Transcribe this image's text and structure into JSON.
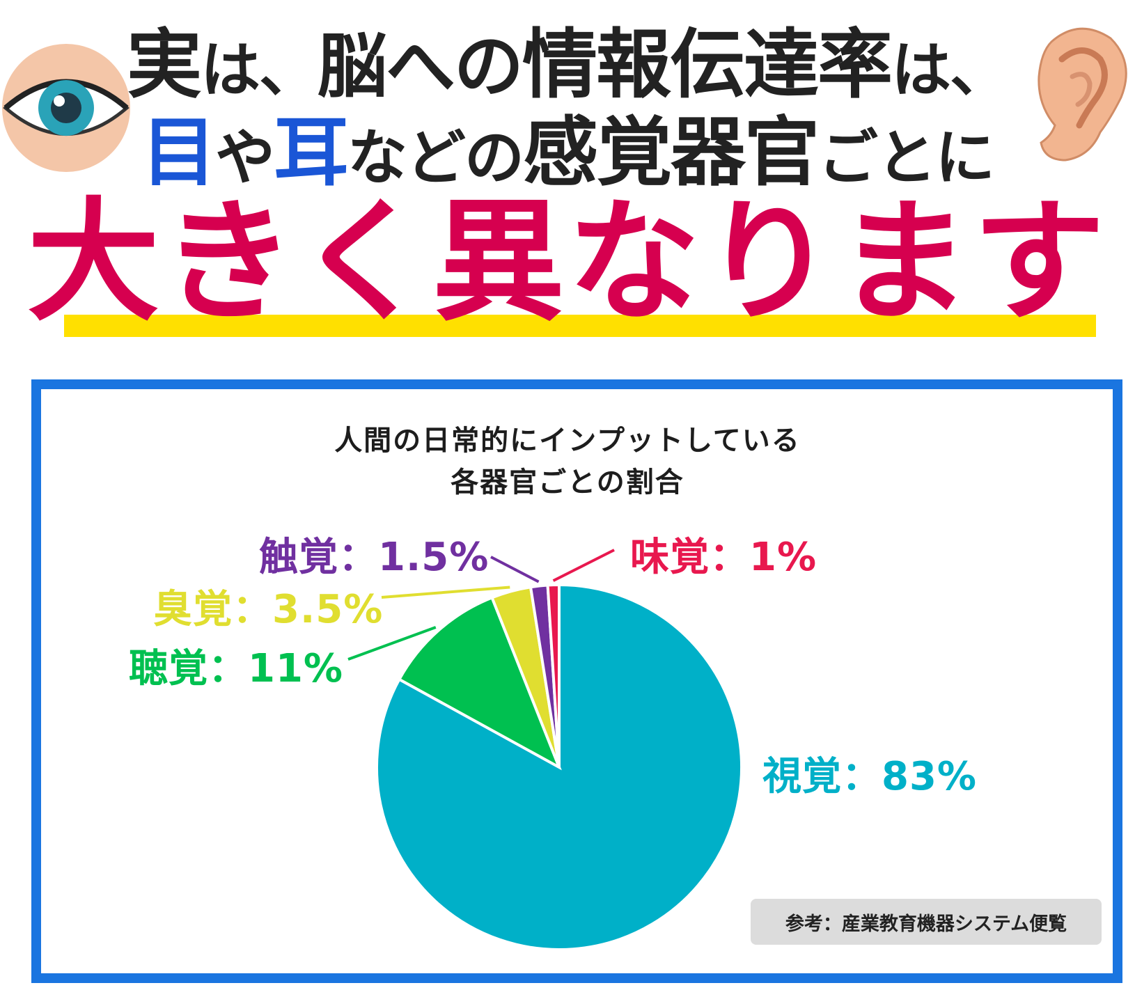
{
  "headline": {
    "line1": {
      "p1": "実",
      "p2": "は、",
      "p3": "脳への",
      "p4": "情報伝達率",
      "p5": "は、"
    },
    "line2": {
      "p1": "目",
      "p2": "や",
      "p3": "耳",
      "p4": "などの",
      "p5": "感覚器官",
      "p6": "ごとに"
    },
    "line3": "大きく異なります"
  },
  "icons": {
    "left": "eye-icon",
    "right": "ear-icon"
  },
  "colors": {
    "accent_red": "#d6004f",
    "accent_blue": "#1a56d6",
    "frame_blue": "#1a75e0",
    "underline_yellow": "#ffe000"
  },
  "chart_data": {
    "type": "pie",
    "title_lines": [
      "人間の日常的にインプットしている",
      "各器官ごとの割合"
    ],
    "slices": [
      {
        "name": "視覚",
        "label": "視覚：83%",
        "value": 83,
        "color": "#00b0c8"
      },
      {
        "name": "聴覚",
        "label": "聴覚：11%",
        "value": 11,
        "color": "#00c050"
      },
      {
        "name": "臭覚",
        "label": "臭覚：3.5%",
        "value": 3.5,
        "color": "#e0de30"
      },
      {
        "name": "触覚",
        "label": "触覚：1.5%",
        "value": 1.5,
        "color": "#7030a0"
      },
      {
        "name": "味覚",
        "label": "味覚：1%",
        "value": 1,
        "color": "#e8184e"
      }
    ],
    "source": "参考：産業教育機器システム便覧"
  }
}
